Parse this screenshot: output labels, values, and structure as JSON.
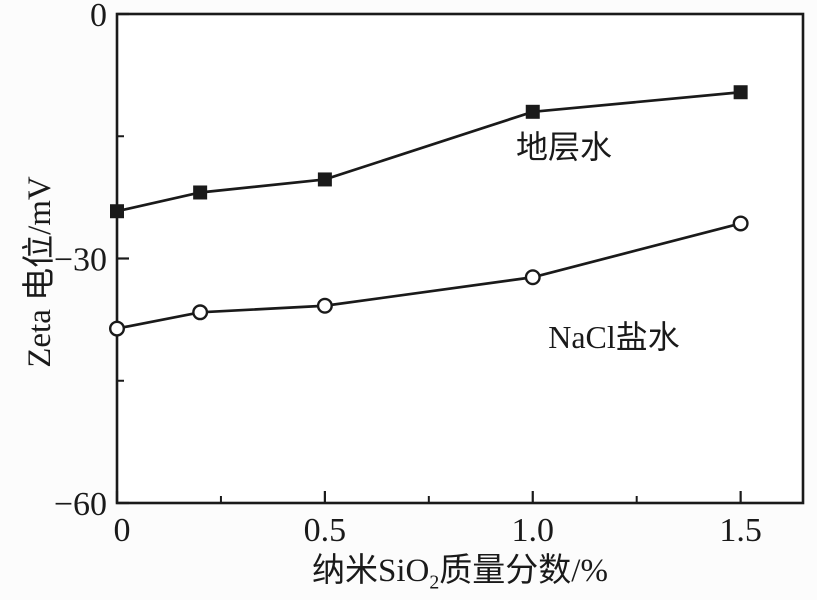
{
  "figure": {
    "background_color": "#fcfcfc",
    "ink_color": "#1a1a1a"
  },
  "chart_data": {
    "type": "line",
    "title": "",
    "xlabel": "纳米SiO2质量分数/%",
    "xlabel_parts": {
      "prefix": "纳米SiO",
      "subscript": "2",
      "suffix": "质量分数/%"
    },
    "ylabel": "Zeta 电位/mV",
    "xlim": [
      0,
      1.65
    ],
    "ylim": [
      -60,
      0
    ],
    "x_major_ticks": [
      0,
      0.5,
      1.0,
      1.5
    ],
    "x_major_tick_labels": [
      "0",
      "0.5",
      "1.0",
      "1.5"
    ],
    "x_minor_ticks": [
      0.25,
      0.75,
      1.25
    ],
    "y_major_ticks": [
      0,
      -30,
      -60
    ],
    "y_major_tick_labels": [
      "0",
      "−30",
      "−60"
    ],
    "y_minor_ticks": [
      -15,
      -45
    ],
    "grid": false,
    "legend_position": "inline annotations inside plot",
    "series": [
      {
        "name": "地层水",
        "marker": "filled-square",
        "color": "#1a1a1a",
        "x": [
          0,
          0.2,
          0.5,
          1.0,
          1.5
        ],
        "y": [
          -24.2,
          -21.9,
          -20.3,
          -12.0,
          -9.6
        ]
      },
      {
        "name": "NaCl盐水",
        "marker": "open-circle",
        "color": "#1a1a1a",
        "x": [
          0,
          0.2,
          0.5,
          1.0,
          1.5
        ],
        "y": [
          -38.6,
          -36.6,
          -35.8,
          -32.3,
          -25.7
        ]
      }
    ]
  }
}
